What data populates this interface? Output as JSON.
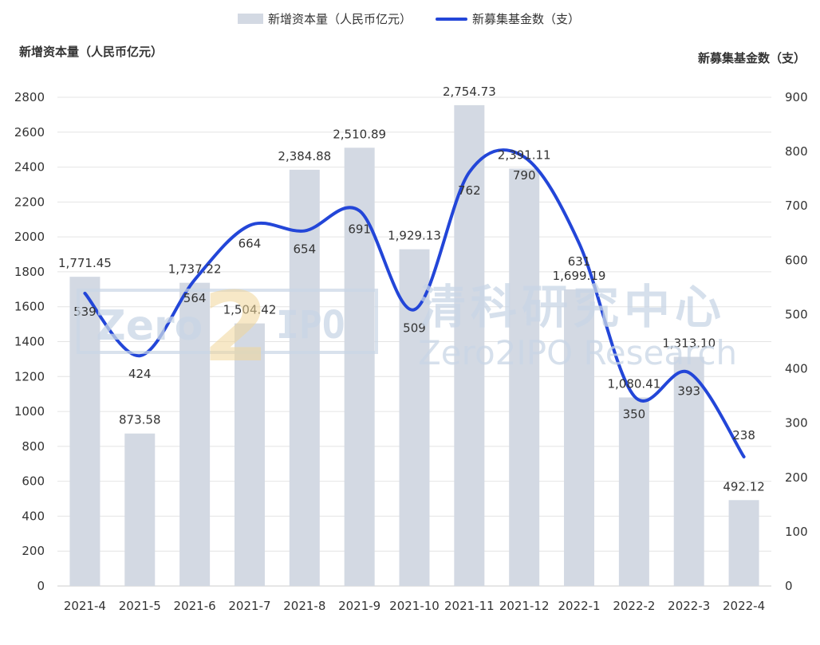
{
  "legend": {
    "bar_label": "新增资本量（人民币亿元）",
    "line_label": "新募集基金数（支）"
  },
  "watermark": {
    "logo_text_1": "Zero",
    "logo_text_2": "IPO",
    "logo_digit": "2",
    "cn_text": "清科研究中心",
    "en_text": "Zero2IPO Research"
  },
  "colors": {
    "bar": "#d3d9e3",
    "line": "#2346d8",
    "grid": "#e4e4e4",
    "text": "#333333"
  },
  "chart_data": {
    "type": "bar+line",
    "categories": [
      "2021-4",
      "2021-5",
      "2021-6",
      "2021-7",
      "2021-8",
      "2021-9",
      "2021-10",
      "2021-11",
      "2021-12",
      "2022-1",
      "2022-2",
      "2022-3",
      "2022-4"
    ],
    "series": [
      {
        "name": "新增资本量（人民币亿元）",
        "type": "bar",
        "axis": "left",
        "values": [
          1771.45,
          873.58,
          1737.22,
          1504.42,
          2384.88,
          2510.89,
          1929.13,
          2754.73,
          2391.11,
          1699.19,
          1080.41,
          1313.1,
          492.12
        ],
        "labels": [
          "1,771.45",
          "873.58",
          "1,737.22",
          "1,504.42",
          "2,384.88",
          "2,510.89",
          "1,929.13",
          "2,754.73",
          "2,391.11",
          "1,699.19",
          "1,080.41",
          "1,313.10",
          "492.12"
        ]
      },
      {
        "name": "新募集基金数（支）",
        "type": "line",
        "axis": "right",
        "smooth": true,
        "values": [
          539,
          424,
          564,
          664,
          654,
          691,
          509,
          762,
          790,
          631,
          350,
          393,
          238
        ],
        "labels": [
          "539",
          "424",
          "564",
          "664",
          "654",
          "691",
          "509",
          "762",
          "790",
          "631",
          "350",
          "393",
          "238"
        ]
      }
    ],
    "ylabel": "新增资本量（人民币亿元）",
    "y2label": "新募集基金数（支）",
    "ylim": [
      0,
      2800
    ],
    "yticks": [
      "0",
      "200",
      "400",
      "600",
      "800",
      "1000",
      "1200",
      "1400",
      "1600",
      "1800",
      "2000",
      "2200",
      "2400",
      "2600",
      "2800"
    ],
    "y2lim": [
      0,
      900
    ],
    "y2ticks": [
      "0",
      "100",
      "200",
      "300",
      "400",
      "500",
      "600",
      "700",
      "800",
      "900"
    ],
    "grid": true,
    "legend_position": "top-center"
  }
}
